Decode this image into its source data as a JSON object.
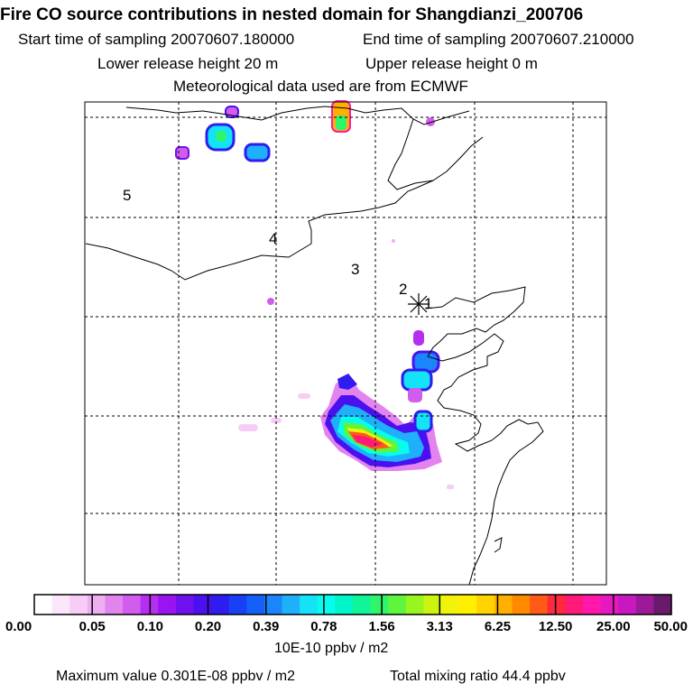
{
  "header": {
    "title": "Fire CO source contributions in nested domain for Shangdianzi_200706",
    "start": "Start time of sampling 20070607.180000",
    "end": "End time of sampling 20070607.210000",
    "lower": "Lower release height   20 m",
    "upper": "Upper release height    0 m",
    "met": "Meteorological data used are from ECMWF"
  },
  "map": {
    "markers": [
      "5",
      "4",
      "3",
      "2",
      "1"
    ],
    "receptor_label": "receptor-star"
  },
  "colorbar": {
    "colors": [
      "#ffffff",
      "#fbe6fb",
      "#f7cdf7",
      "#f0aef2",
      "#e283ee",
      "#d25cee",
      "#b52ff0",
      "#9a14f2",
      "#6f10ee",
      "#4a10f0",
      "#2e1cf0",
      "#1a40f5",
      "#1560fa",
      "#1b86fb",
      "#1fb0fb",
      "#14e2f7",
      "#06fdec",
      "#00f5c8",
      "#10f59a",
      "#2ef56a",
      "#5ef53c",
      "#98f51e",
      "#cbf510",
      "#f2f20a",
      "#fff000",
      "#ffd400",
      "#ffb000",
      "#ff8a00",
      "#ff5a18",
      "#ff2a3c",
      "#ff1a7a",
      "#ff18aa",
      "#e818c0",
      "#c818c0",
      "#9c1a98",
      "#6a1a6a"
    ],
    "labels": [
      "0.00",
      "0.05",
      "0.10",
      "0.20",
      "0.39",
      "0.78",
      "1.56",
      "3.13",
      "6.25",
      "12.50",
      "25.00",
      "50.00"
    ],
    "unit": "10E-10 ppbv / m2"
  },
  "footer": {
    "max_value": "Maximum value  0.301E-08 ppbv / m2",
    "total": "Total mixing ratio       44.4 ppbv"
  }
}
